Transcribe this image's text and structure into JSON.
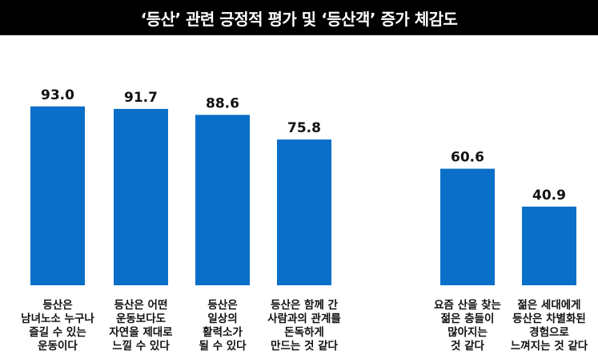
{
  "title": "‘등산’ 관련 긍정적 평가 및 ‘등산객’ 증가 체감도",
  "colors": {
    "bar": "#0a6fc8",
    "title_bg": "#000000",
    "title_text": "#ffffff"
  },
  "chart_data": {
    "type": "bar",
    "title": "‘등산’ 관련 긍정적 평가 및 ‘등산객’ 증가 체감도",
    "ylim": [
      0,
      100
    ],
    "grid": false,
    "categories": [
      [
        "등산은",
        "남녀노소 누구나",
        "즐길 수 있는",
        "운동이다"
      ],
      [
        "등산은 어떤",
        "운동보다도",
        "자연을 제대로",
        "느낄 수 있다"
      ],
      [
        "등산은",
        "일상의",
        "활력소가",
        "될 수 있다"
      ],
      [
        "등산은 함께 간",
        "사람과의 관계를",
        "돈독하게",
        "만드는 것 같다"
      ],
      [
        "요즘 산을 찾는",
        "젊은 층들이",
        "많아지는",
        "것 같다"
      ],
      [
        "젊은 세대에게",
        "등산은 차별화된",
        "경험으로",
        "느껴지는 것 같다"
      ]
    ],
    "values": [
      93.0,
      91.7,
      88.6,
      75.8,
      60.6,
      40.9
    ],
    "value_labels": [
      "93.0",
      "91.7",
      "88.6",
      "75.8",
      "60.6",
      "40.9"
    ]
  }
}
